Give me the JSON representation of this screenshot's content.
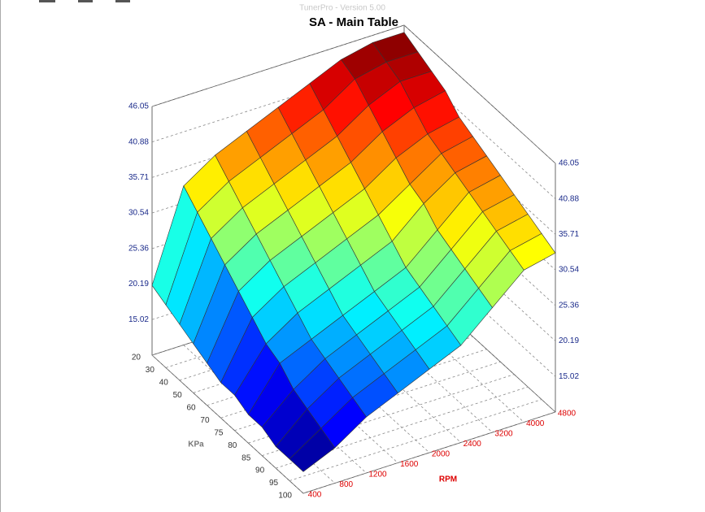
{
  "window_title": "TunerPro - Version 5.00",
  "chart_data": {
    "type": "surface",
    "title": "SA - Main Table",
    "x_label": "KPa",
    "y_label": "RPM",
    "colormap": "jet",
    "x": [
      20,
      30,
      40,
      50,
      60,
      70,
      75,
      80,
      85,
      90,
      95,
      100
    ],
    "y": [
      400,
      800,
      1200,
      1600,
      2000,
      2400,
      3200,
      4000,
      4800
    ],
    "values": [
      [
        20,
        33,
        36,
        38,
        40,
        42,
        44,
        45,
        45
      ],
      [
        19,
        31,
        34,
        36,
        38,
        40,
        43,
        44,
        44
      ],
      [
        18,
        29,
        32,
        34,
        36,
        38,
        41,
        43,
        43
      ],
      [
        17,
        27,
        30,
        32,
        34,
        36,
        39,
        41,
        42
      ],
      [
        16,
        25,
        28,
        30,
        32,
        34,
        37,
        39,
        40
      ],
      [
        15,
        23,
        26,
        28,
        30,
        32,
        35,
        38,
        39
      ],
      [
        15,
        21,
        24,
        26,
        28,
        30,
        34,
        37,
        38
      ],
      [
        14,
        20,
        22,
        24,
        26,
        28,
        32,
        36,
        37
      ],
      [
        14,
        18,
        21,
        23,
        25,
        27,
        31,
        35,
        36
      ],
      [
        13,
        17,
        20,
        22,
        24,
        26,
        30,
        34,
        35
      ],
      [
        13,
        16,
        19,
        21,
        23,
        25,
        29,
        33,
        34
      ],
      [
        13,
        15,
        18,
        20,
        22,
        24,
        28,
        32,
        33
      ]
    ],
    "zlim": [
      9.85,
      46.05
    ],
    "zticks": [
      15.02,
      20.19,
      25.36,
      30.54,
      35.71,
      40.88,
      46.05
    ],
    "grid": true
  }
}
